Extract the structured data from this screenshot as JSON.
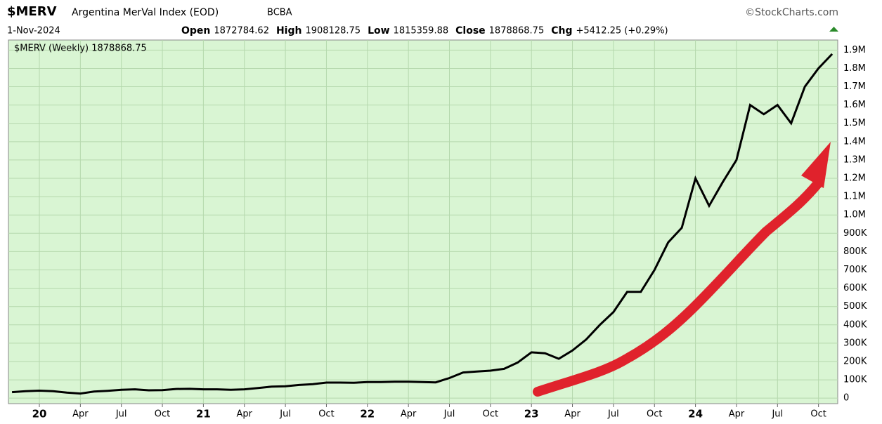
{
  "header": {
    "symbol": "$MERV",
    "name": "Argentina MerVal Index (EOD)",
    "exchange": "BCBA",
    "credit": "©StockCharts.com",
    "date": "1-Nov-2024",
    "quote": [
      [
        "Open",
        "1872784.62"
      ],
      [
        "High",
        "1908128.75"
      ],
      [
        "Low",
        "1815359.88"
      ],
      [
        "Close",
        "1878868.75"
      ],
      [
        "Chg",
        "+5412.25 (+0.29%)"
      ]
    ]
  },
  "chart_data": {
    "type": "line",
    "categories": [
      null,
      null,
      "20",
      null,
      null,
      "Apr",
      null,
      null,
      "Jul",
      null,
      null,
      "Oct",
      null,
      null,
      "21",
      null,
      null,
      "Apr",
      null,
      null,
      "Jul",
      null,
      null,
      "Oct",
      null,
      null,
      "22",
      null,
      null,
      "Apr",
      null,
      null,
      "Jul",
      null,
      null,
      "Oct",
      null,
      null,
      "23",
      null,
      null,
      "Apr",
      null,
      null,
      "Jul",
      null,
      null,
      "Oct",
      null,
      null,
      "24",
      null,
      null,
      "Apr",
      null,
      null,
      "Jul",
      null,
      null,
      "Oct",
      null
    ],
    "series": [
      {
        "name": "$MERV (Weekly) 1878868.75",
        "color": "#000000",
        "values": [
          33000,
          38000,
          41000,
          38000,
          30000,
          25000,
          36000,
          40000,
          46000,
          48000,
          43000,
          44000,
          50000,
          51000,
          48000,
          48000,
          46000,
          48000,
          55000,
          63000,
          65000,
          72000,
          76000,
          85000,
          85000,
          84000,
          88000,
          88000,
          90000,
          90000,
          88000,
          86000,
          110000,
          140000,
          145000,
          150000,
          160000,
          195000,
          250000,
          245000,
          215000,
          260000,
          320000,
          400000,
          470000,
          580000,
          580000,
          700000,
          850000,
          930000,
          1200000,
          1050000,
          1180000,
          1300000,
          1600000,
          1550000,
          1600000,
          1500000,
          1700000,
          1800000,
          1878868.75
        ]
      }
    ],
    "ylim": [
      -30000,
      1955000
    ],
    "yticks": [
      0,
      {
        "value": 100000,
        "label": "100K"
      },
      {
        "value": 200000,
        "label": "200K"
      },
      {
        "value": 300000,
        "label": "300K"
      },
      {
        "value": 400000,
        "label": "400K"
      },
      {
        "value": 500000,
        "label": "500K"
      },
      {
        "value": 600000,
        "label": "600K"
      },
      {
        "value": 700000,
        "label": "700K"
      },
      {
        "value": 800000,
        "label": "800K"
      },
      {
        "value": 900000,
        "label": "900K"
      },
      {
        "value": 1000000,
        "label": "1.0M"
      },
      {
        "value": 1100000,
        "label": "1.1M"
      },
      {
        "value": 1200000,
        "label": "1.2M"
      },
      {
        "value": 1300000,
        "label": "1.3M"
      },
      {
        "value": 1400000,
        "label": "1.4M"
      },
      {
        "value": 1500000,
        "label": "1.5M"
      },
      {
        "value": 1600000,
        "label": "1.6M"
      },
      {
        "value": 1700000,
        "label": "1.7M"
      },
      {
        "value": 1800000,
        "label": "1.8M"
      },
      {
        "value": 1900000,
        "label": "1.9M"
      }
    ],
    "grid": true,
    "background": "#d9f5d3"
  }
}
